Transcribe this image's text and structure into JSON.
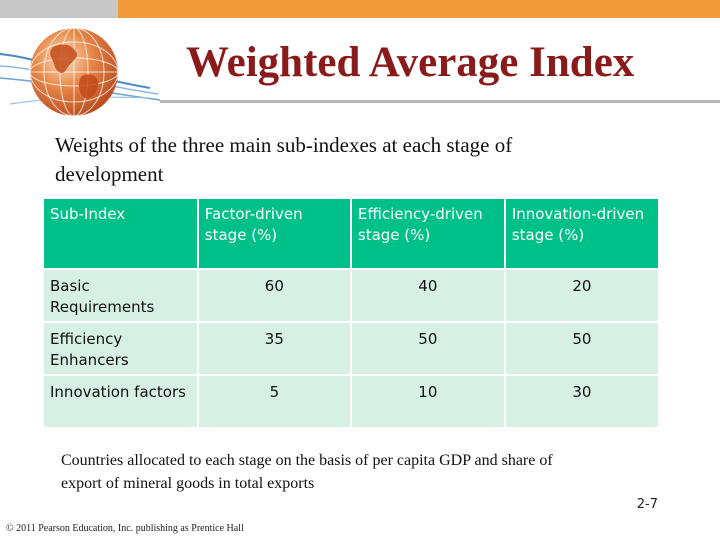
{
  "slide": {
    "title": "Weighted Average Index",
    "subtitle": "Weights of the three main sub-indexes at each stage of development",
    "note": "Countries allocated to each stage on the basis of  per capita GDP and share of export of mineral goods in total exports",
    "page_number": "2-7",
    "copyright": "© 2011 Pearson Education, Inc. publishing as Prentice Hall"
  },
  "table": {
    "headers": [
      "Sub-Index",
      "Factor-driven stage (%)",
      "Efficiency-driven stage (%)",
      "Innovation-driven stage (%)"
    ],
    "rows": [
      [
        "Basic Requirements",
        "60",
        "40",
        "20"
      ],
      [
        "Efficiency Enhancers",
        "35",
        "50",
        "50"
      ],
      [
        "Innovation factors",
        "5",
        "10",
        "30"
      ]
    ]
  },
  "colors": {
    "title": "#8b1a1a",
    "header_bg": "#00c08a",
    "cell_bg": "#d7f0e4",
    "top_bar": "#f39a3a"
  },
  "icons": [
    "globe-logo-icon"
  ]
}
